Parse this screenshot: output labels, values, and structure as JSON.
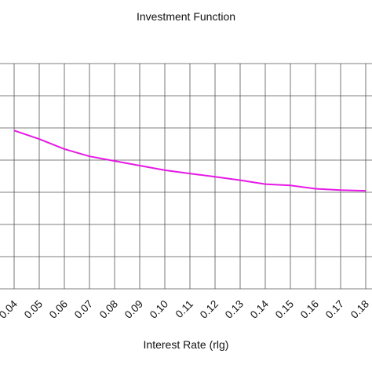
{
  "chart_data": {
    "type": "line",
    "title": "Investment Function",
    "xlabel": "Interest Rate (rlg)",
    "ylabel": "",
    "x_ticks": [
      "0.04",
      "0.05",
      "0.06",
      "0.07",
      "0.08",
      "0.09",
      "0.10",
      "0.11",
      "0.12",
      "0.13",
      "0.14",
      "0.15",
      "0.16",
      "0.17",
      "0.18"
    ],
    "xlim": [
      0.04,
      0.18
    ],
    "grid": true,
    "legend": "none",
    "series": [
      {
        "color": "#e619e6",
        "x": [
          0.04,
          0.05,
          0.06,
          0.07,
          0.08,
          0.09,
          0.1,
          0.11,
          0.12,
          0.13,
          0.14,
          0.15,
          0.16,
          0.17,
          0.18
        ],
        "y": [
          4.78,
          4.52,
          4.22,
          4.0,
          3.86,
          3.72,
          3.58,
          3.48,
          3.38,
          3.28,
          3.16,
          3.12,
          3.02,
          2.98,
          2.96
        ]
      }
    ]
  }
}
